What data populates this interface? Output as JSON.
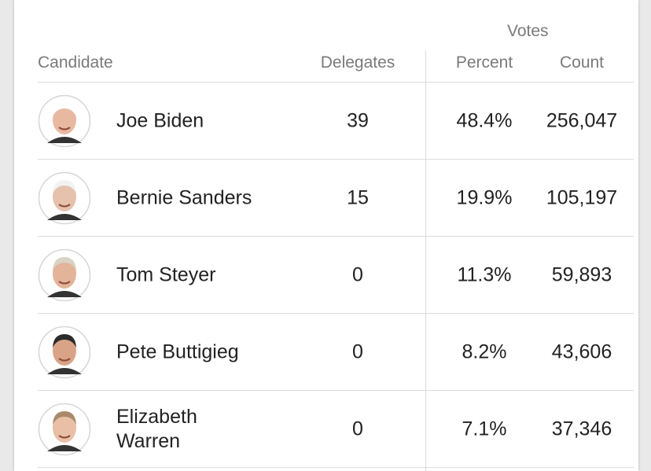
{
  "table": {
    "group_header": "Votes",
    "columns": [
      "Candidate",
      "Delegates",
      "Percent",
      "Count"
    ],
    "rows": [
      [
        "Joe Biden",
        "39",
        "48.4%",
        "256,047"
      ],
      [
        "Bernie Sanders",
        "15",
        "19.9%",
        "105,197"
      ],
      [
        "Tom Steyer",
        "0",
        "11.3%",
        "59,893"
      ],
      [
        "Pete Buttigieg",
        "0",
        "8.2%",
        "43,606"
      ],
      [
        "Elizabeth Warren",
        "0",
        "7.1%",
        "37,346"
      ]
    ]
  }
}
